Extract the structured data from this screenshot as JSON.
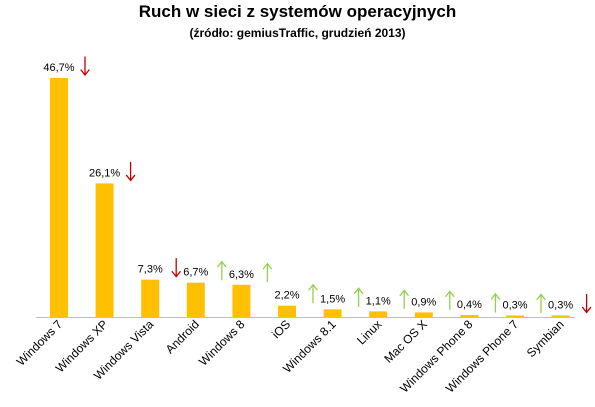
{
  "chart_data": {
    "type": "bar",
    "title": "Ruch w sieci z systemów operacyjnych",
    "subtitle": "(źródło: gemiusTraffic, grudzień 2013)",
    "xlabel": "",
    "ylabel": "",
    "ylim": [
      0,
      50
    ],
    "grid": false,
    "legend": "none",
    "categories": [
      "Windows 7",
      "Windows XP",
      "Windows Vista",
      "Android",
      "Windows 8",
      "iOS",
      "Windows 8.1",
      "Linux",
      "Mac OS X",
      "Windows Phone 8",
      "Windows Phone 7",
      "Symbian"
    ],
    "values": [
      46.7,
      26.1,
      7.3,
      6.7,
      6.3,
      2.2,
      1.5,
      1.1,
      0.9,
      0.4,
      0.3,
      0.3
    ],
    "value_labels": [
      "46,7%",
      "26,1%",
      "7,3%",
      "6,7%",
      "6,3%",
      "2,2%",
      "1,5%",
      "1,1%",
      "0,9%",
      "0,4%",
      "0,3%",
      "0,3%"
    ],
    "trends": [
      "down",
      "down",
      "down",
      "up",
      "up",
      "up",
      "up",
      "up",
      "up",
      "up",
      "up",
      "down"
    ],
    "colors": {
      "bar": "#FFC000",
      "up": "#92D050",
      "down": "#C00000",
      "axis": "#BFBFBF"
    }
  }
}
